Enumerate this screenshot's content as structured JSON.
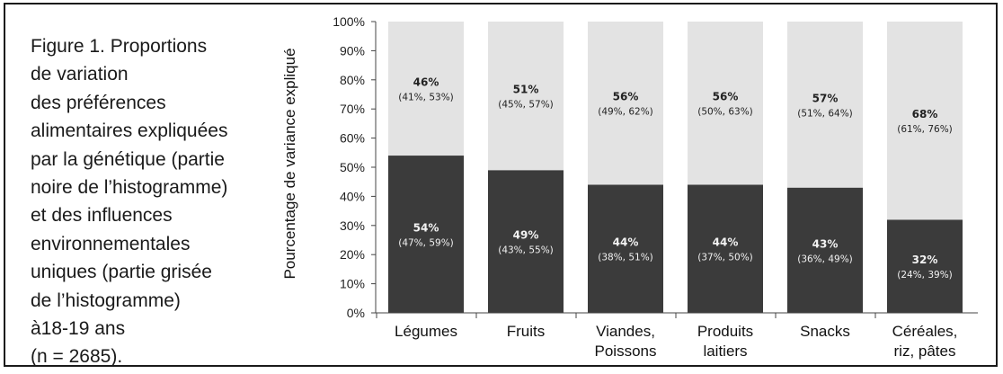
{
  "caption": "Figure 1. Proportions\nde variation\ndes préférences\nalimentaires expliquées\npar la génétique (partie\nnoire de l’histogramme)\net des influences\nenvironnementales\nuniques (partie grisée\nde l’histogramme)\nà18-19 ans\n(n = 2685).",
  "chart_data": {
    "type": "bar",
    "stacked": true,
    "ylabel": "Pourcentage de variance expliqué",
    "ylim": [
      0,
      100
    ],
    "yticks": [
      "0%",
      "10%",
      "20%",
      "30%",
      "40%",
      "50%",
      "60%",
      "70%",
      "80%",
      "90%",
      "100%"
    ],
    "categories": [
      [
        "Légumes"
      ],
      [
        "Fruits"
      ],
      [
        "Viandes,",
        "Poissons"
      ],
      [
        "Produits",
        "laitiers"
      ],
      [
        "Snacks"
      ],
      [
        "Céréales,",
        "riz, pâtes"
      ]
    ],
    "series": [
      {
        "color": "#3b3b3b",
        "values": [
          54,
          49,
          44,
          44,
          43,
          32
        ],
        "labels": [
          "54%",
          "49%",
          "44%",
          "44%",
          "43%",
          "32%"
        ],
        "ci": [
          "(47%, 59%)",
          "(43%, 55%)",
          "(38%, 51%)",
          "(37%, 50%)",
          "(36%, 49%)",
          "(24%, 39%)"
        ]
      },
      {
        "color": "#e3e3e3",
        "values": [
          46,
          51,
          56,
          56,
          57,
          68
        ],
        "labels": [
          "46%",
          "51%",
          "56%",
          "56%",
          "57%",
          "68%"
        ],
        "ci": [
          "(41%, 53%)",
          "(45%, 57%)",
          "(49%, 62%)",
          "(50%, 63%)",
          "(51%, 64%)",
          "(61%, 76%)"
        ]
      }
    ],
    "grid": false,
    "legend": "none"
  }
}
